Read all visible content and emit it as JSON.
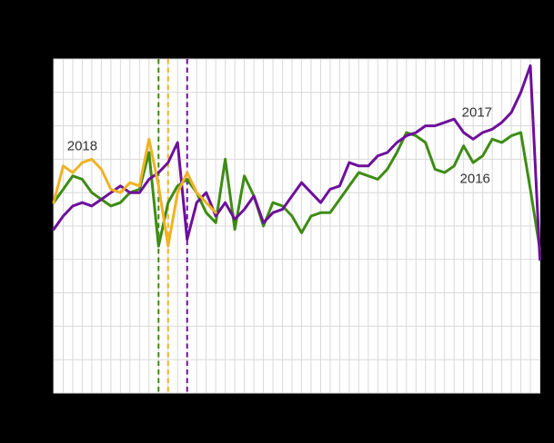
{
  "chart_data": {
    "type": "line",
    "title": "",
    "x_unit": "week",
    "x_range": [
      1,
      52
    ],
    "ylim": [
      0,
      100
    ],
    "grid": true,
    "x_gridline_every": 1,
    "y_gridline_every": 10,
    "background": "#000000",
    "plot_background": "#ffffff",
    "gridline_color": "#d9d9d9",
    "label_color": "#333333",
    "legend_position": "inline-labels",
    "series": [
      {
        "name": "2016",
        "color": "#3e8c14",
        "start_week": 1,
        "values": [
          57,
          61,
          65,
          64,
          60,
          58,
          56,
          57,
          60,
          61,
          72,
          44,
          57,
          62,
          64,
          60,
          54,
          51,
          70,
          49,
          65,
          59,
          50,
          57,
          56,
          53,
          48,
          53,
          54,
          54,
          58,
          62,
          66,
          65,
          64,
          67,
          72,
          78,
          77,
          75,
          67,
          66,
          68,
          74,
          69,
          71,
          76,
          75,
          77,
          78,
          61,
          43
        ]
      },
      {
        "name": "2017",
        "color": "#6e0f9b",
        "start_week": 1,
        "values": [
          49,
          53,
          56,
          57,
          56,
          58,
          60,
          62,
          60,
          60,
          64,
          66,
          69,
          75,
          46,
          57,
          60,
          53,
          57,
          52,
          55,
          59,
          51,
          54,
          55,
          59,
          63,
          60,
          57,
          61,
          62,
          69,
          68,
          68,
          71,
          72,
          75,
          77,
          78,
          80,
          80,
          81,
          82,
          78,
          76,
          78,
          79,
          81,
          84,
          90,
          98,
          40
        ]
      },
      {
        "name": "2018",
        "color": "#efb324",
        "start_week": 1,
        "values": [
          57,
          68,
          66,
          69,
          70,
          67,
          61,
          60,
          63,
          62,
          76,
          62,
          44,
          60,
          66,
          60,
          57,
          54
        ]
      }
    ],
    "vertical_dashed_markers": [
      {
        "series": "2016",
        "week": 12,
        "color": "#3e8c14"
      },
      {
        "series": "2018",
        "week": 13,
        "color": "#efb324"
      },
      {
        "series": "2017",
        "week": 15,
        "color": "#6e0f9b"
      }
    ],
    "annotations": [
      {
        "label": "2018",
        "week": 4.0,
        "value": 74
      },
      {
        "label": "2017",
        "week": 45.4,
        "value": 84
      },
      {
        "label": "2016",
        "week": 45.2,
        "value": 64
      }
    ]
  }
}
